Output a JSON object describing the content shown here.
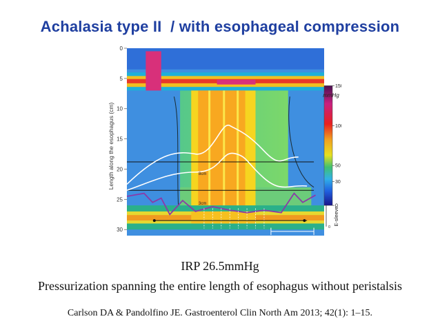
{
  "slide": {
    "title": "Achalasia type II  / with esophageal compression",
    "irp_text": "IRP 26.5mmHg",
    "description": "Pressurization spanning the entire length of esophagus without peristalsis",
    "citation": "Carlson DA & Pandolfino JE. Gastroenterol Clin North Am 2013; 42(1): 1–15."
  },
  "colors": {
    "title": "#1f3fa0",
    "background_low": "#3f8fe0",
    "pressurization": "#f6d520",
    "peak": "#d8307a"
  },
  "chart_data": {
    "type": "heatmap",
    "title": "",
    "ylabel": "Length along the esophagus (cm)",
    "yticks": [
      0,
      5,
      10,
      15,
      20,
      25,
      30
    ],
    "ylim": [
      0,
      31
    ],
    "duration_s": 23,
    "time_scale_label": "5s",
    "time_scale_s": 5,
    "colorbar": {
      "unit_label": "mmHg",
      "ticks": [
        0,
        30,
        50,
        100,
        150
      ],
      "range": [
        0,
        150
      ]
    },
    "esleeve": {
      "label": "E-sleeve",
      "ticks": [
        0,
        50
      ],
      "range": [
        0,
        50
      ]
    },
    "isobar_labels": [
      "8cm",
      "3cm"
    ],
    "ues_band_cm": [
      4,
      7
    ],
    "les_band_cm": [
      27,
      29
    ],
    "pressurization_band_s": [
      7.5,
      15
    ],
    "swallow_time_s": 0
  }
}
